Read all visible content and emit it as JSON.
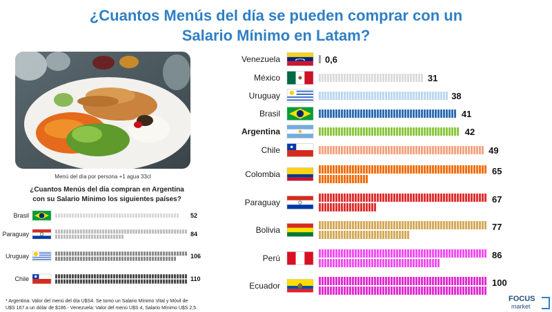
{
  "title": {
    "line1": "¿Cuantos Menús del día se pueden comprar con un",
    "line2": "Salario Mínimo en Latam?"
  },
  "photo_caption": "Menú del día por persona +1 agua 33cl",
  "subtitle": {
    "line1": "¿Cuantos Menús del día compran en Argentina",
    "line2": "con su Salario Mínimo los siguientes países?"
  },
  "chart_data": [
    {
      "type": "bar",
      "title": "¿Cuantos Menús del día se pueden comprar con un Salario Mínimo en Latam?",
      "orientation": "horizontal",
      "categories": [
        "Venezuela",
        "México",
        "Uruguay",
        "Brasil",
        "Argentina",
        "Chile",
        "Colombia",
        "Paraguay",
        "Bolivia",
        "Perú",
        "Ecuador"
      ],
      "values": [
        0.6,
        31,
        38,
        41,
        42,
        49,
        65,
        67,
        77,
        86,
        100
      ],
      "value_labels": [
        "0,6",
        "31",
        "38",
        "41",
        "42",
        "49",
        "65",
        "67",
        "77",
        "86",
        "100"
      ],
      "bold_category": "Argentina",
      "colors": [
        "#9e9e9e",
        "#dcdcdc",
        "#bcd8f0",
        "#2e6db4",
        "#8cc63f",
        "#f4a582",
        "#f07010",
        "#e03030",
        "#d4aa5a",
        "#f050f0",
        "#e030d0"
      ]
    },
    {
      "type": "bar",
      "title": "¿Cuantos Menús del día compran en Argentina con su Salario Mínimo los siguientes países?",
      "orientation": "horizontal",
      "categories": [
        "Brasil",
        "Paraguay",
        "Uruguay",
        "Chile"
      ],
      "values": [
        52,
        84,
        106,
        110
      ],
      "value_labels": [
        "52",
        "84",
        "106",
        "110"
      ],
      "colors": [
        "#d9d9d9",
        "#bdbdbd",
        "#8a8a8a",
        "#4a4a4a"
      ]
    }
  ],
  "footnote": {
    "line1": "* Argentina: Valor del menú del día U$S4. Se tomo un Salario Mínimo Vital y Móvil de",
    "line2": "U$S 167 a un dólar de $186.- Venezuela: Valor del menú U$S 4, Salario Mínimo U$S 2,5."
  },
  "logo": {
    "word1": "FOCUS",
    "word2": "market"
  },
  "icons": [
    "food-photo",
    "flag-venezuela",
    "flag-mexico",
    "flag-uruguay",
    "flag-brasil",
    "flag-argentina",
    "flag-chile",
    "flag-colombia",
    "flag-paraguay",
    "flag-bolivia",
    "flag-peru",
    "flag-ecuador"
  ]
}
